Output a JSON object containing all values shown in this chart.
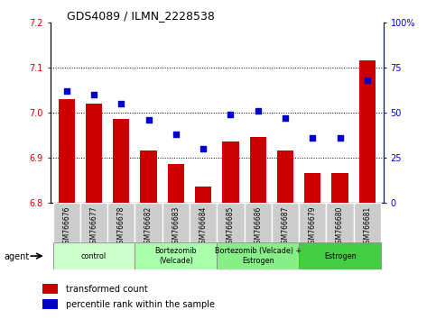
{
  "title": "GDS4089 / ILMN_2228538",
  "samples": [
    "GSM766676",
    "GSM766677",
    "GSM766678",
    "GSM766682",
    "GSM766683",
    "GSM766684",
    "GSM766685",
    "GSM766686",
    "GSM766687",
    "GSM766679",
    "GSM766680",
    "GSM766681"
  ],
  "bar_values": [
    7.03,
    7.02,
    6.985,
    6.915,
    6.885,
    6.835,
    6.935,
    6.945,
    6.915,
    6.865,
    6.865,
    7.115
  ],
  "dot_values": [
    62,
    60,
    55,
    46,
    38,
    30,
    49,
    51,
    47,
    36,
    36,
    68
  ],
  "bar_color": "#cc0000",
  "dot_color": "#0000cc",
  "ylim_left": [
    6.8,
    7.2
  ],
  "ylim_right": [
    0,
    100
  ],
  "yticks_left": [
    6.8,
    6.9,
    7.0,
    7.1,
    7.2
  ],
  "yticks_right": [
    0,
    25,
    50,
    75,
    100
  ],
  "ytick_labels_right": [
    "0",
    "25",
    "50",
    "75",
    "100%"
  ],
  "groups": [
    {
      "label": "control",
      "start": 0,
      "end": 3,
      "color": "#ccffcc"
    },
    {
      "label": "Bortezomib\n(Velcade)",
      "start": 3,
      "end": 6,
      "color": "#aaffaa"
    },
    {
      "label": "Bortezomib (Velcade) +\nEstrogen",
      "start": 6,
      "end": 9,
      "color": "#88ee88"
    },
    {
      "label": "Estrogen",
      "start": 9,
      "end": 12,
      "color": "#44cc44"
    }
  ],
  "agent_label": "agent",
  "legend_bar_label": "transformed count",
  "legend_dot_label": "percentile rank within the sample",
  "label_bg_color": "#cccccc",
  "label_edge_color": "#ffffff"
}
